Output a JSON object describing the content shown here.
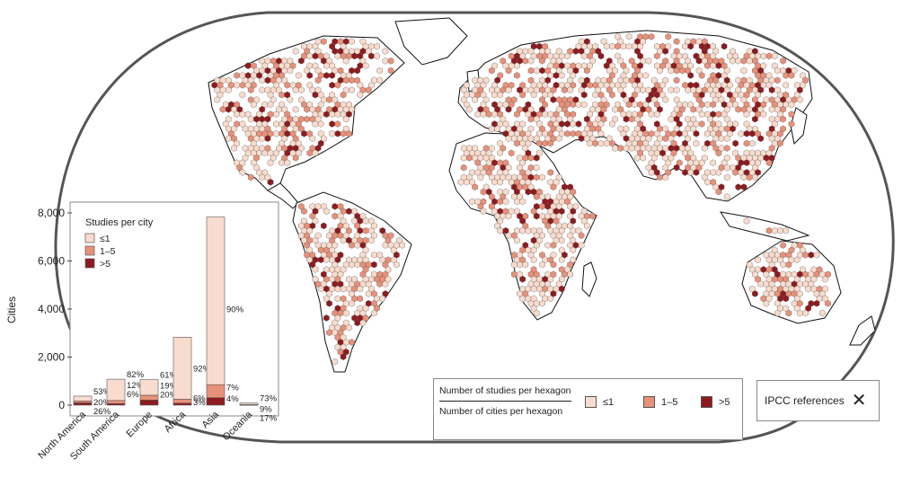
{
  "colors": {
    "low": "#f9dccd",
    "mid": "#e8917a",
    "high": "#8e1b1f",
    "land_stroke": "#111111",
    "outline": "#555555"
  },
  "map": {
    "projection": "robinson-like world map",
    "hexagon_legend": {
      "numerator": "Number of studies per hexagon",
      "denominator": "Number of cities per hexagon",
      "items": [
        {
          "label": "≤1",
          "color_key": "low"
        },
        {
          "label": "1–5",
          "color_key": "mid"
        },
        {
          "label": ">5",
          "color_key": "high"
        }
      ]
    },
    "ipcc": {
      "label": "IPCC references",
      "icon": "x-icon"
    }
  },
  "chart_data": {
    "type": "bar",
    "ylabel": "Cities",
    "ylim": [
      0,
      8000
    ],
    "yticks": [
      "0",
      "2,000",
      "4,000",
      "6,000",
      "8,000"
    ],
    "ytick_values": [
      0,
      2000,
      4000,
      6000,
      8000
    ],
    "legend_title": "Studies per city",
    "legend_items": [
      "≤1",
      "1–5",
      ">5"
    ],
    "categories": [
      "North America",
      "South America",
      "Europe",
      "Africa",
      "Asia",
      "Oceania"
    ],
    "totals": [
      380,
      1080,
      1060,
      2800,
      7750,
      90
    ],
    "series": [
      {
        "name": ">5",
        "percent_labels": [
          "26%",
          "6%",
          "20%",
          "3%",
          "4%",
          "17%"
        ],
        "shares": [
          0.26,
          0.06,
          0.2,
          0.03,
          0.04,
          0.17
        ]
      },
      {
        "name": "1–5",
        "percent_labels": [
          "20%",
          "12%",
          "19%",
          "6%",
          "7%",
          "9%"
        ],
        "shares": [
          0.2,
          0.12,
          0.19,
          0.06,
          0.07,
          0.09
        ]
      },
      {
        "name": "≤1",
        "percent_labels": [
          "53%",
          "82%",
          "61%",
          "92%",
          "90%",
          "73%"
        ],
        "shares": [
          0.53,
          0.82,
          0.61,
          0.92,
          0.9,
          0.73
        ]
      }
    ]
  }
}
